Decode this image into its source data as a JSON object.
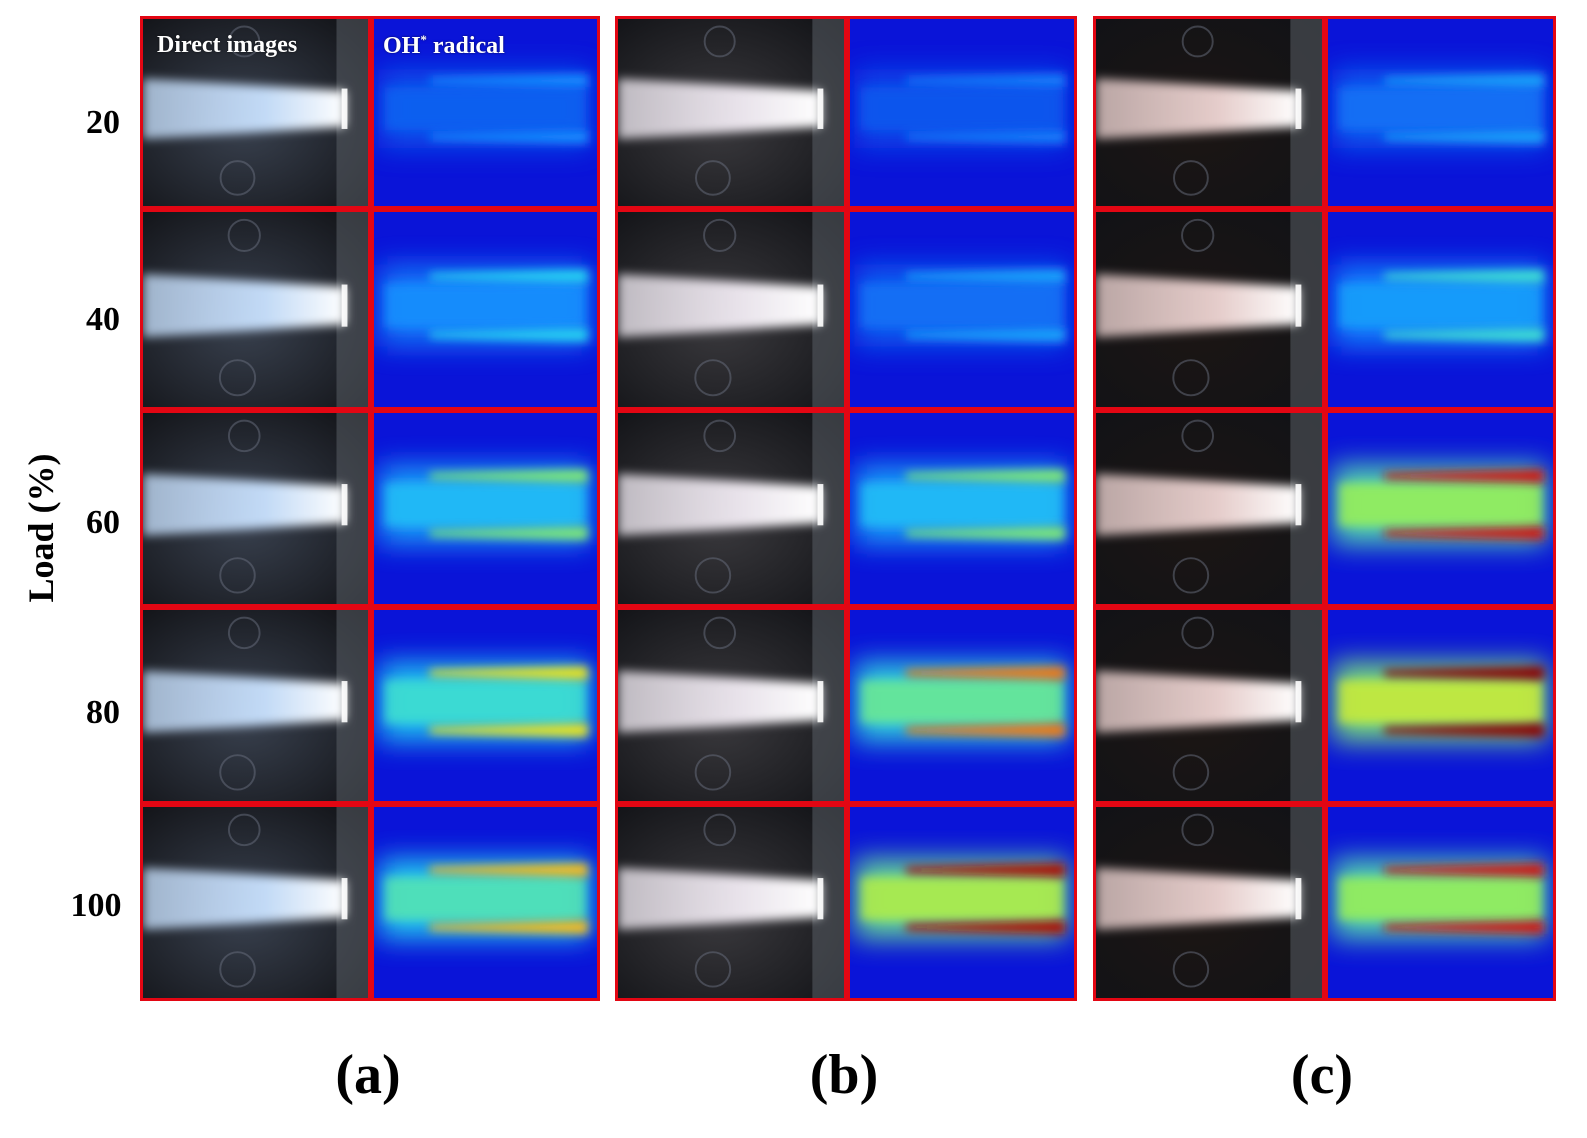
{
  "column_headers": {
    "direct": "Direct images",
    "oh_prefix": "OH",
    "oh_sup": "*",
    "oh_suffix": " radical"
  },
  "y_axis_label": "Load (%)",
  "load_levels": [
    "20",
    "40",
    "60",
    "80",
    "100"
  ],
  "panels": [
    {
      "label": "(a)",
      "direct_tint": "#c9e2ff",
      "background": "#3a4250",
      "oh_intensity": [
        0.25,
        0.4,
        0.55,
        0.7,
        0.75
      ]
    },
    {
      "label": "(b)",
      "direct_tint": "#f2ecf4",
      "background": "#3b3a3e",
      "oh_intensity": [
        0.22,
        0.3,
        0.55,
        0.8,
        0.95
      ]
    },
    {
      "label": "(c)",
      "direct_tint": "#f0d6d4",
      "background": "#1c1614",
      "oh_intensity": [
        0.3,
        0.45,
        0.9,
        1.0,
        0.9
      ]
    }
  ],
  "colors": {
    "cell_border": "#e30613",
    "oh_background": "#0a14d8"
  }
}
